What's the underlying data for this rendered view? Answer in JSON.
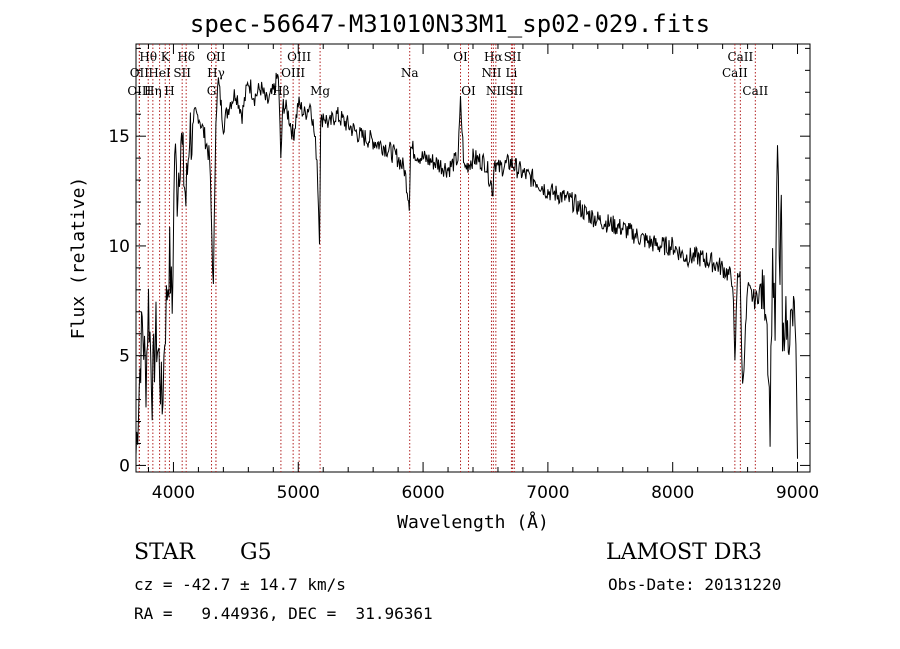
{
  "chart_data": {
    "type": "line",
    "title": "spec-56647-M31010N33M1_sp02-029.fits",
    "xlabel": "Wavelength (Å)",
    "ylabel": "Flux (relative)",
    "xlim": [
      3700,
      9100
    ],
    "ylim": [
      -0.3,
      19.2
    ],
    "x_ticks": [
      4000,
      5000,
      6000,
      7000,
      8000,
      9000
    ],
    "y_ticks": [
      0,
      5,
      10,
      15
    ],
    "grid": false,
    "series": [
      {
        "name": "spectrum",
        "x": [
          3700,
          3720,
          3750,
          3780,
          3800,
          3830,
          3860,
          3890,
          3910,
          3930,
          3950,
          3970,
          3990,
          4010,
          4030,
          4060,
          4100,
          4130,
          4160,
          4200,
          4250,
          4290,
          4320,
          4340,
          4360,
          4400,
          4450,
          4500,
          4550,
          4600,
          4650,
          4700,
          4750,
          4800,
          4840,
          4860,
          4880,
          4920,
          4960,
          5000,
          5050,
          5100,
          5150,
          5170,
          5180,
          5200,
          5250,
          5300,
          5400,
          5500,
          5600,
          5700,
          5800,
          5850,
          5890,
          5900,
          5950,
          6000,
          6100,
          6200,
          6280,
          6300,
          6330,
          6400,
          6500,
          6560,
          6570,
          6600,
          6700,
          6800,
          6900,
          7000,
          7100,
          7200,
          7300,
          7400,
          7500,
          7600,
          7700,
          7800,
          7900,
          8000,
          8100,
          8200,
          8300,
          8400,
          8480,
          8498,
          8520,
          8540,
          8560,
          8600,
          8662,
          8700,
          8750,
          8780,
          8800,
          8820,
          8840,
          8860,
          8870,
          8880,
          8900,
          8920,
          8950,
          8980,
          9000
        ],
        "y": [
          0.5,
          3.0,
          6.5,
          4.0,
          7.5,
          3.5,
          6.0,
          4.5,
          2.5,
          6.0,
          8.0,
          9.5,
          7.0,
          14.5,
          12.5,
          15.0,
          12.0,
          15.5,
          14.5,
          16.0,
          15.0,
          14.0,
          8.0,
          16.0,
          17.5,
          15.5,
          16.5,
          17.0,
          16.0,
          17.5,
          16.8,
          17.2,
          16.5,
          17.0,
          17.8,
          14.0,
          16.5,
          16.0,
          15.0,
          16.5,
          16.0,
          16.5,
          14.0,
          10.5,
          15.5,
          16.0,
          15.5,
          16.0,
          15.5,
          15.0,
          14.8,
          14.5,
          14.0,
          13.5,
          12.0,
          14.5,
          14.2,
          14.0,
          13.8,
          13.5,
          14.0,
          16.5,
          13.5,
          14.0,
          13.8,
          12.5,
          14.0,
          13.5,
          13.8,
          13.3,
          13.0,
          12.5,
          12.3,
          12.0,
          11.5,
          11.2,
          11.0,
          10.8,
          10.5,
          10.2,
          10.0,
          10.0,
          9.5,
          9.5,
          9.3,
          9.0,
          8.5,
          4.5,
          9.0,
          8.5,
          3.5,
          8.0,
          7.5,
          8.0,
          7.5,
          2.0,
          9.5,
          6.0,
          14.5,
          8.0,
          12.5,
          5.0,
          7.0,
          6.0,
          6.5,
          7.0,
          0.3
        ]
      }
    ],
    "line_markers": [
      {
        "label": "Hθ",
        "x": 3798,
        "row": 1
      },
      {
        "label": "K",
        "x": 3934,
        "row": 1
      },
      {
        "label": "Hδ",
        "x": 4102,
        "row": 1
      },
      {
        "label": "OII",
        "x": 4340,
        "row": 1
      },
      {
        "label": "OIII",
        "x": 5007,
        "row": 1
      },
      {
        "label": "OI",
        "x": 6300,
        "row": 1
      },
      {
        "label": "Hα",
        "x": 6563,
        "row": 1
      },
      {
        "label": "SII",
        "x": 6717,
        "row": 1
      },
      {
        "label": "CaII",
        "x": 8542,
        "row": 1
      },
      {
        "label": "OII",
        "x": 3727,
        "row": 2
      },
      {
        "label": "HeI",
        "x": 3889,
        "row": 2
      },
      {
        "label": "SII",
        "x": 4070,
        "row": 2
      },
      {
        "label": "Hγ",
        "x": 4341,
        "row": 2
      },
      {
        "label": "OIII",
        "x": 4959,
        "row": 2
      },
      {
        "label": "Na",
        "x": 5893,
        "row": 2
      },
      {
        "label": "NII",
        "x": 6548,
        "row": 2
      },
      {
        "label": "Li",
        "x": 6708,
        "row": 2
      },
      {
        "label": "CaII",
        "x": 8498,
        "row": 2
      },
      {
        "label": "OIII",
        "x": 3727,
        "row": 3
      },
      {
        "label": "Hη",
        "x": 3835,
        "row": 3
      },
      {
        "label": "H",
        "x": 3968,
        "row": 3
      },
      {
        "label": "G",
        "x": 4305,
        "row": 3
      },
      {
        "label": "Hβ",
        "x": 4861,
        "row": 3
      },
      {
        "label": "Mg",
        "x": 5175,
        "row": 3
      },
      {
        "label": "OI",
        "x": 6364,
        "row": 3
      },
      {
        "label": "NII",
        "x": 6583,
        "row": 3
      },
      {
        "label": "SII",
        "x": 6731,
        "row": 3
      },
      {
        "label": "CaII",
        "x": 8662,
        "row": 3
      }
    ]
  },
  "info": {
    "class": "STAR",
    "subclass": "G5",
    "survey": "LAMOST DR3",
    "cz": "cz = -42.7 ± 14.7 km/s",
    "obs_date": "Obs-Date: 20131220",
    "coords": "RA =   9.44936, DEC =  31.96361"
  },
  "colors": {
    "axes": "#000000",
    "line_marker": "#b22222",
    "background": "#ffffff"
  }
}
